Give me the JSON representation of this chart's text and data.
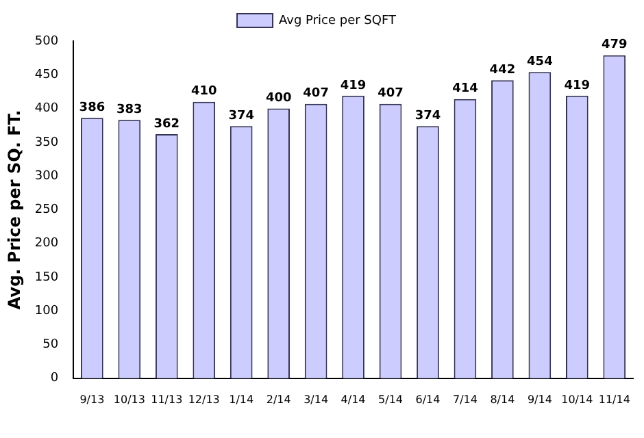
{
  "chart_data": {
    "type": "bar",
    "ylabel": "Avg. Price per SQ. FT.",
    "categories": [
      "9/13",
      "10/13",
      "11/13",
      "12/13",
      "1/14",
      "2/14",
      "3/14",
      "4/14",
      "5/14",
      "6/14",
      "7/14",
      "8/14",
      "9/14",
      "10/14",
      "11/14"
    ],
    "series": [
      {
        "name": "Avg Price per SQFT",
        "color": "#ccccff",
        "values": [
          386,
          383,
          362,
          410,
          374,
          400,
          407,
          419,
          407,
          374,
          414,
          442,
          454,
          419,
          479
        ]
      }
    ],
    "ylim": [
      0,
      500
    ],
    "yticks": [
      0,
      50,
      100,
      150,
      200,
      250,
      300,
      350,
      400,
      450,
      500
    ],
    "grid": false,
    "legend": "top",
    "data_labels": true
  }
}
